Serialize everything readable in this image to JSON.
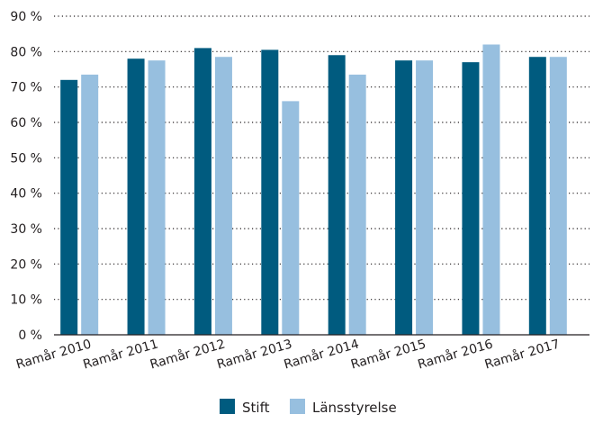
{
  "chart_data": {
    "type": "bar",
    "title": "",
    "xlabel": "",
    "ylabel": "",
    "ylim": [
      0,
      90
    ],
    "yticks": [
      0,
      10,
      20,
      30,
      40,
      50,
      60,
      70,
      80,
      90
    ],
    "y_tick_suffix": " %",
    "grid": "horizontal dotted",
    "legend": "bottom-center",
    "categories": [
      "Ramår 2010",
      "Ramår 2011",
      "Ramår 2012",
      "Ramår 2013",
      "Ramår 2014",
      "Ramår 2015",
      "Ramår 2016",
      "Ramår 2017"
    ],
    "series": [
      {
        "name": "Stift",
        "color": "#005b7f",
        "values": [
          72,
          78,
          81,
          80.5,
          79,
          77.5,
          77,
          78.5
        ]
      },
      {
        "name": "Länsstyrelse",
        "color": "#97bfdf",
        "values": [
          73.5,
          77.5,
          78.5,
          66,
          73.5,
          77.5,
          82,
          78.5
        ]
      }
    ]
  }
}
